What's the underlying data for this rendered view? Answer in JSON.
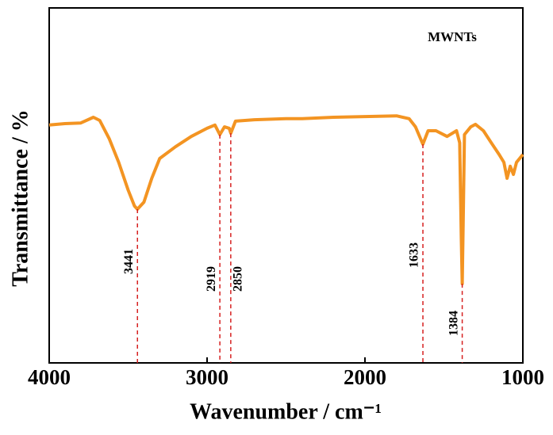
{
  "chart_data": {
    "type": "line",
    "title": "MWNTs",
    "x_label": "Wavenumber / cm⁻¹",
    "y_label": "Transmittance / %",
    "xlim": [
      4000,
      1000
    ],
    "ylim": [
      0,
      100
    ],
    "xticks": [
      4000,
      3000,
      2000,
      1000
    ],
    "series": [
      {
        "color": "#f39422",
        "x": [
          4000,
          3900,
          3800,
          3720,
          3680,
          3620,
          3560,
          3500,
          3460,
          3441,
          3400,
          3350,
          3300,
          3200,
          3100,
          3000,
          2950,
          2919,
          2890,
          2860,
          2850,
          2820,
          2700,
          2500,
          2400,
          2200,
          2000,
          1800,
          1720,
          1680,
          1633,
          1600,
          1550,
          1480,
          1420,
          1400,
          1390,
          1384,
          1378,
          1370,
          1330,
          1300,
          1250,
          1200,
          1150,
          1120,
          1100,
          1080,
          1060,
          1040,
          1000
        ],
        "values": [
          67,
          67.4,
          67.6,
          69.2,
          68.3,
          63.2,
          56.5,
          48.7,
          44.2,
          43.3,
          45.3,
          52,
          57.6,
          60.9,
          63.8,
          66.1,
          67,
          64.3,
          66.5,
          66.1,
          64.7,
          68.1,
          68.5,
          68.8,
          68.8,
          69.2,
          69.4,
          69.6,
          68.8,
          66.5,
          61.6,
          65.4,
          65.4,
          63.8,
          65.4,
          62,
          35.3,
          22.3,
          39.7,
          64.3,
          66.5,
          67.2,
          65.4,
          62,
          58.7,
          56.5,
          52,
          55.4,
          53.1,
          56.5,
          58.7
        ]
      }
    ],
    "peaks": [
      3441,
      2919,
      2850,
      1633,
      1384
    ]
  }
}
